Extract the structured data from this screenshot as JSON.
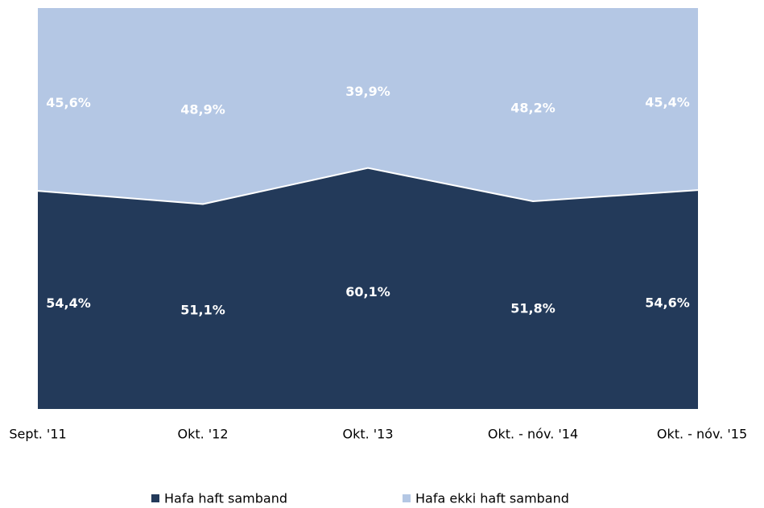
{
  "chart_data": {
    "type": "stacked_area",
    "categories": [
      "Sept. '11",
      "Okt. '12",
      "Okt. '13",
      "Okt. - nóv. '14",
      "Okt. - nóv. '15"
    ],
    "series": [
      {
        "name": "Hafa haft samband",
        "color": "#233a5a",
        "values": [
          54.4,
          51.1,
          60.1,
          51.8,
          54.6
        ],
        "value_labels": [
          "54,4%",
          "51,1%",
          "60,1%",
          "51,8%",
          "54,6%"
        ]
      },
      {
        "name": "Hafa ekki haft samband",
        "color": "#b4c7e4",
        "values": [
          45.6,
          48.9,
          39.9,
          48.2,
          45.4
        ],
        "value_labels": [
          "45,6%",
          "48,9%",
          "39,9%",
          "48,2%",
          "45,4%"
        ]
      }
    ],
    "ylim": [
      0,
      100
    ]
  }
}
